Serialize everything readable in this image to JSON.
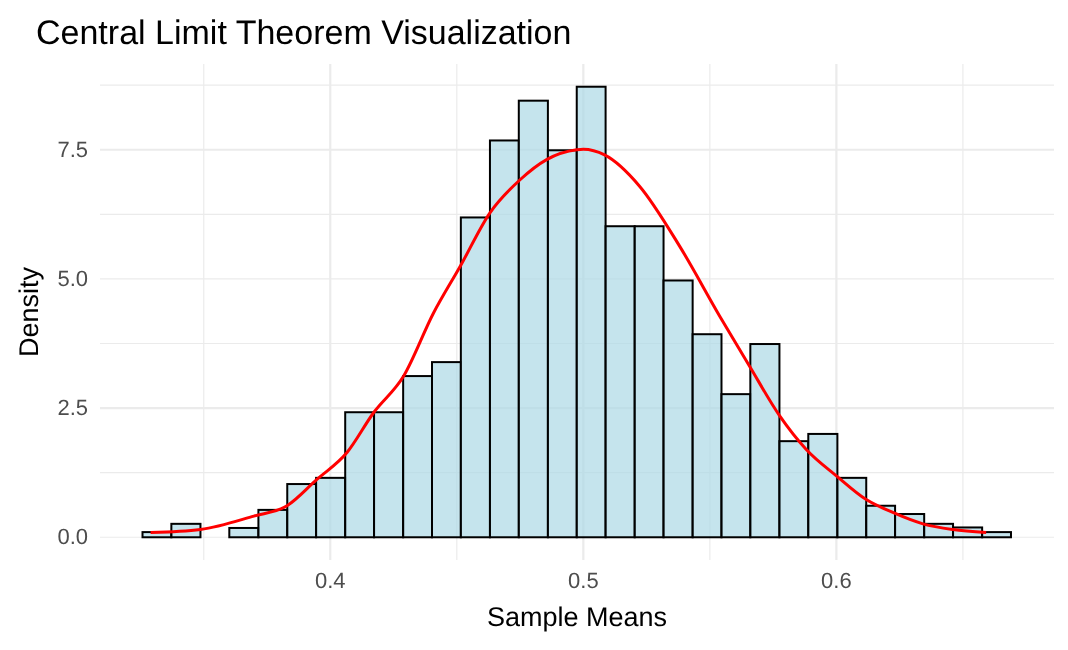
{
  "chart_data": {
    "type": "histogram",
    "title": "Central Limit Theorem Visualization",
    "xlabel": "Sample Means",
    "ylabel": "Density",
    "bins": [
      0.3258,
      0.3372,
      0.3487,
      0.3601,
      0.3716,
      0.383,
      0.3944,
      0.4059,
      0.4173,
      0.4288,
      0.4402,
      0.4516,
      0.4631,
      0.4745,
      0.486,
      0.4974,
      0.5088,
      0.5203,
      0.5317,
      0.5432,
      0.5546,
      0.566,
      0.5775,
      0.5889,
      0.6004,
      0.6118,
      0.6232,
      0.6347,
      0.6461,
      0.6576,
      0.669
    ],
    "values": [
      0.1,
      0.26,
      0,
      0.18,
      0.53,
      1.03,
      1.15,
      2.42,
      2.42,
      3.12,
      3.39,
      6.19,
      7.68,
      8.45,
      7.49,
      8.72,
      6.02,
      6.02,
      4.97,
      3.93,
      2.77,
      3.74,
      1.86,
      2.0,
      1.15,
      0.61,
      0.45,
      0.26,
      0.19,
      0.1
    ],
    "color": "#add8e6",
    "series": [
      {
        "type": "line",
        "color": "#ff0000",
        "x": [
          0.329,
          0.3487,
          0.3698,
          0.3829,
          0.3947,
          0.4066,
          0.4171,
          0.429,
          0.4408,
          0.4513,
          0.4631,
          0.475,
          0.4855,
          0.4974,
          0.5,
          0.5084,
          0.5223,
          0.5381,
          0.5539,
          0.5657,
          0.5776,
          0.5881,
          0.6,
          0.6118,
          0.6223,
          0.6342,
          0.646,
          0.6592
        ],
        "values": [
          0.09,
          0.15,
          0.41,
          0.61,
          1.12,
          1.64,
          2.41,
          3.12,
          4.34,
          5.24,
          6.28,
          6.92,
          7.31,
          7.5,
          7.51,
          7.4,
          6.79,
          5.63,
          4.28,
          3.31,
          2.35,
          1.7,
          1.19,
          0.73,
          0.48,
          0.26,
          0.15,
          0.09
        ]
      }
    ],
    "xlim": [
      0.309,
      0.686
    ],
    "ylim": [
      -0.44,
      9.16
    ],
    "xticks": [
      {
        "value": 0.35,
        "label": null
      },
      0.4,
      {
        "value": 0.45,
        "label": null
      },
      0.5,
      {
        "value": 0.55,
        "label": null
      },
      0.6,
      {
        "value": 0.65,
        "label": null
      }
    ],
    "yticks": [
      {
        "value": 0,
        "label": "0.0"
      },
      {
        "value": 1.25,
        "label": null
      },
      2.5,
      {
        "value": 3.75,
        "label": null
      },
      {
        "value": 5,
        "label": "5.0"
      },
      {
        "value": 6.25,
        "label": null
      },
      7.5,
      {
        "value": 8.75,
        "label": null
      }
    ],
    "grid": true
  }
}
